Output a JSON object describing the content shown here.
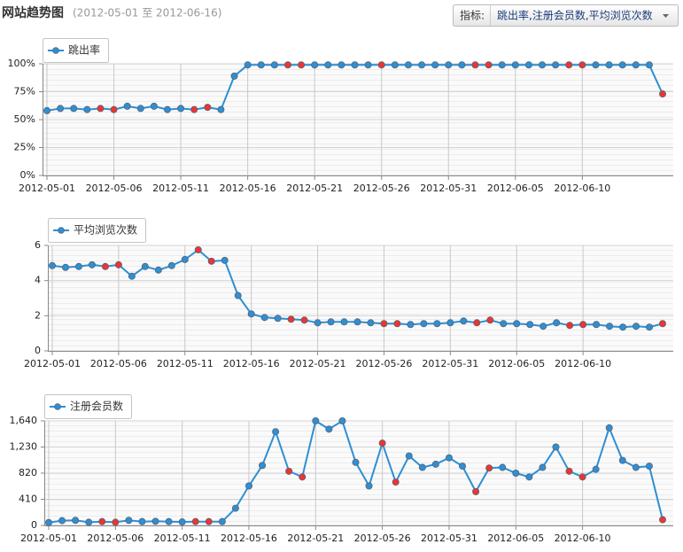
{
  "header": {
    "title": "网站趋势图",
    "subtitle": "(2012-05-01 至 2012-06-16)",
    "selector_label": "指标:",
    "selector_value": "跳出率,注册会员数,平均浏览次数"
  },
  "chart_data": [
    {
      "type": "line",
      "categories": [
        "2012-05-01",
        null,
        null,
        null,
        null,
        "2012-05-06",
        null,
        null,
        null,
        null,
        "2012-05-11",
        null,
        null,
        null,
        null,
        "2012-05-16",
        null,
        null,
        null,
        null,
        "2012-05-21",
        null,
        null,
        null,
        null,
        "2012-05-26",
        null,
        null,
        null,
        null,
        "2012-05-31",
        null,
        null,
        null,
        null,
        "2012-06-05",
        null,
        null,
        null,
        null,
        "2012-06-10",
        null,
        null,
        null,
        null,
        null,
        null
      ],
      "series": [
        {
          "name": "跳出率",
          "color": "#2d8fd5",
          "marker_colors": [
            "#2d8fd5",
            "#2d8fd5",
            "#2d8fd5",
            "#2d8fd5",
            "#ee3333",
            "#ee3333",
            "#2d8fd5",
            "#2d8fd5",
            "#2d8fd5",
            "#2d8fd5",
            "#2d8fd5",
            "#ee3333",
            "#ee3333",
            "#2d8fd5",
            "#2d8fd5",
            "#2d8fd5",
            "#2d8fd5",
            "#2d8fd5",
            "#ee3333",
            "#ee3333",
            "#2d8fd5",
            "#2d8fd5",
            "#2d8fd5",
            "#2d8fd5",
            "#2d8fd5",
            "#ee3333",
            "#2d8fd5",
            "#2d8fd5",
            "#2d8fd5",
            "#2d8fd5",
            "#2d8fd5",
            "#2d8fd5",
            "#ee3333",
            "#ee3333",
            "#2d8fd5",
            "#2d8fd5",
            "#2d8fd5",
            "#2d8fd5",
            "#2d8fd5",
            "#ee3333",
            "#ee3333",
            "#2d8fd5",
            "#2d8fd5",
            "#2d8fd5",
            "#2d8fd5",
            "#2d8fd5",
            "#ee3333"
          ],
          "values": [
            58,
            60,
            60,
            59,
            60,
            59,
            62,
            60,
            62,
            59,
            60,
            59,
            61,
            59,
            89,
            99,
            99,
            99,
            99,
            99,
            99,
            99,
            99,
            99,
            99,
            99,
            99,
            99,
            99,
            99,
            99,
            99,
            99,
            99,
            99,
            99,
            99,
            99,
            99,
            99,
            99,
            99,
            99,
            99,
            99,
            99,
            73
          ]
        }
      ],
      "ylim": [
        0,
        100
      ],
      "yticks": [
        {
          "value": 0,
          "label": "0%"
        },
        {
          "value": 25,
          "label": "25%"
        },
        {
          "value": 50,
          "label": "50%"
        },
        {
          "value": 75,
          "label": "75%"
        },
        {
          "value": 100,
          "label": "100%"
        }
      ],
      "grid": true
    },
    {
      "type": "line",
      "categories": [
        "2012-05-01",
        null,
        null,
        null,
        null,
        "2012-05-06",
        null,
        null,
        null,
        null,
        "2012-05-11",
        null,
        null,
        null,
        null,
        "2012-05-16",
        null,
        null,
        null,
        null,
        "2012-05-21",
        null,
        null,
        null,
        null,
        "2012-05-26",
        null,
        null,
        null,
        null,
        "2012-05-31",
        null,
        null,
        null,
        null,
        "2012-06-05",
        null,
        null,
        null,
        null,
        "2012-06-10",
        null,
        null,
        null,
        null,
        null,
        null
      ],
      "series": [
        {
          "name": "平均浏览次数",
          "color": "#2d8fd5",
          "marker_colors": [
            "#2d8fd5",
            "#2d8fd5",
            "#2d8fd5",
            "#2d8fd5",
            "#ee3333",
            "#ee3333",
            "#2d8fd5",
            "#2d8fd5",
            "#2d8fd5",
            "#2d8fd5",
            "#2d8fd5",
            "#ee3333",
            "#ee3333",
            "#2d8fd5",
            "#2d8fd5",
            "#2d8fd5",
            "#2d8fd5",
            "#2d8fd5",
            "#ee3333",
            "#ee3333",
            "#2d8fd5",
            "#2d8fd5",
            "#2d8fd5",
            "#2d8fd5",
            "#2d8fd5",
            "#ee3333",
            "#ee3333",
            "#2d8fd5",
            "#2d8fd5",
            "#2d8fd5",
            "#2d8fd5",
            "#2d8fd5",
            "#ee3333",
            "#ee3333",
            "#2d8fd5",
            "#2d8fd5",
            "#2d8fd5",
            "#2d8fd5",
            "#2d8fd5",
            "#ee3333",
            "#ee3333",
            "#2d8fd5",
            "#2d8fd5",
            "#2d8fd5",
            "#2d8fd5",
            "#2d8fd5",
            "#ee3333"
          ],
          "values": [
            4.85,
            4.75,
            4.8,
            4.9,
            4.8,
            4.9,
            4.25,
            4.8,
            4.6,
            4.85,
            5.2,
            5.75,
            5.1,
            5.15,
            3.15,
            2.1,
            1.9,
            1.85,
            1.8,
            1.75,
            1.6,
            1.65,
            1.65,
            1.65,
            1.6,
            1.55,
            1.55,
            1.5,
            1.55,
            1.55,
            1.6,
            1.7,
            1.6,
            1.75,
            1.55,
            1.55,
            1.5,
            1.4,
            1.6,
            1.45,
            1.5,
            1.5,
            1.4,
            1.35,
            1.4,
            1.35,
            1.55
          ]
        }
      ],
      "ylim": [
        0,
        6
      ],
      "yticks": [
        0,
        2,
        4,
        6
      ],
      "grid": true
    },
    {
      "type": "line",
      "categories": [
        "2012-05-01",
        null,
        null,
        null,
        null,
        "2012-05-06",
        null,
        null,
        null,
        null,
        "2012-05-11",
        null,
        null,
        null,
        null,
        "2012-05-16",
        null,
        null,
        null,
        null,
        "2012-05-21",
        null,
        null,
        null,
        null,
        "2012-05-26",
        null,
        null,
        null,
        null,
        "2012-05-31",
        null,
        null,
        null,
        null,
        "2012-06-05",
        null,
        null,
        null,
        null,
        "2012-06-10",
        null,
        null,
        null,
        null,
        null,
        null
      ],
      "series": [
        {
          "name": "注册会员数",
          "color": "#2d8fd5",
          "marker_colors": [
            "#2d8fd5",
            "#2d8fd5",
            "#2d8fd5",
            "#2d8fd5",
            "#ee3333",
            "#ee3333",
            "#2d8fd5",
            "#2d8fd5",
            "#2d8fd5",
            "#2d8fd5",
            "#2d8fd5",
            "#ee3333",
            "#ee3333",
            "#2d8fd5",
            "#2d8fd5",
            "#2d8fd5",
            "#2d8fd5",
            "#2d8fd5",
            "#ee3333",
            "#ee3333",
            "#2d8fd5",
            "#2d8fd5",
            "#2d8fd5",
            "#2d8fd5",
            "#2d8fd5",
            "#ee3333",
            "#ee3333",
            "#2d8fd5",
            "#2d8fd5",
            "#2d8fd5",
            "#2d8fd5",
            "#2d8fd5",
            "#ee3333",
            "#ee3333",
            "#2d8fd5",
            "#2d8fd5",
            "#2d8fd5",
            "#2d8fd5",
            "#2d8fd5",
            "#ee3333",
            "#ee3333",
            "#2d8fd5",
            "#2d8fd5",
            "#2d8fd5",
            "#2d8fd5",
            "#2d8fd5",
            "#ee3333"
          ],
          "values": [
            45,
            75,
            80,
            50,
            60,
            50,
            80,
            60,
            65,
            60,
            55,
            60,
            60,
            60,
            270,
            620,
            940,
            1470,
            850,
            760,
            1640,
            1510,
            1640,
            990,
            620,
            1290,
            680,
            1090,
            910,
            960,
            1060,
            930,
            530,
            900,
            910,
            820,
            760,
            910,
            1230,
            850,
            760,
            880,
            1530,
            1020,
            910,
            930,
            90
          ]
        }
      ],
      "ylim": [
        0,
        1640
      ],
      "yticks": [
        0,
        410,
        820,
        {
          "value": 1230,
          "label": "1,230"
        },
        {
          "value": 1640,
          "label": "1,640"
        }
      ],
      "grid": true
    }
  ]
}
